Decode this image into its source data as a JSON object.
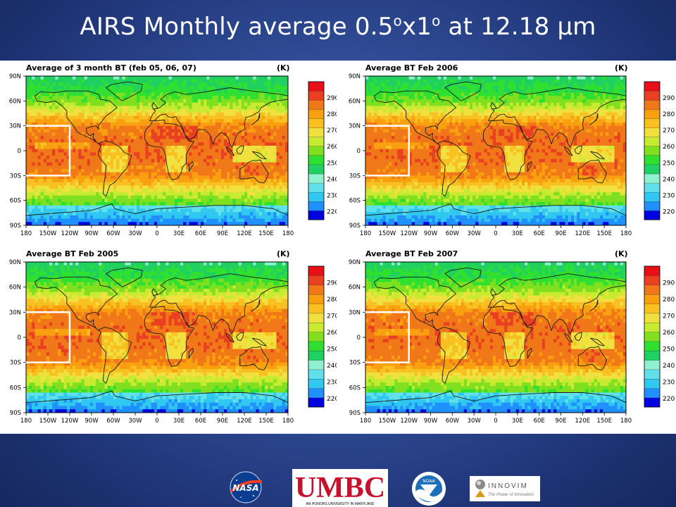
{
  "slide": {
    "title_main": "AIRS Monthly average 0.5",
    "title_deg1": "o",
    "title_mid": "x1",
    "title_deg2": "o",
    "title_end": " at 12.18 µm"
  },
  "colors": {
    "background": "#2f4b95",
    "title": "#ffffff",
    "colorbar": [
      "#0000e0",
      "#2090ff",
      "#30c8f0",
      "#60e0e8",
      "#90f0d0",
      "#20d060",
      "#30e030",
      "#80e020",
      "#c8ea30",
      "#f0e040",
      "#f8c020",
      "#f8a010",
      "#f07818",
      "#e84020",
      "#e81018"
    ],
    "region_box": "#ffffff"
  },
  "logos": {
    "nasa": "NASA",
    "umbc": "UMBC",
    "umbc_tagline": "AN HONORS UNIVERSITY IN MARYLAND",
    "noaa": "NOAA",
    "innovim": "INNOVIM",
    "innovim_tagline": "The Power of Innovation"
  },
  "chart_data": [
    {
      "type": "heatmap",
      "title": "Average of 3 month BT (feb 05, 06, 07)",
      "units": "(K)",
      "x_ticks": [
        "180",
        "150W",
        "120W",
        "90W",
        "60W",
        "30W",
        "0",
        "30E",
        "60E",
        "90E",
        "120E",
        "150E",
        "180"
      ],
      "y_ticks": [
        "90N",
        "60N",
        "30N",
        "0",
        "30S",
        "60S",
        "90S"
      ],
      "colorbar_ticks": [
        "290",
        "280",
        "270",
        "260",
        "250",
        "240",
        "230",
        "220"
      ],
      "colorbar_range": [
        215,
        300
      ],
      "highlight_region": {
        "lon": [
          -180,
          -120
        ],
        "lat": [
          -30,
          30
        ]
      }
    },
    {
      "type": "heatmap",
      "title": "Average BT Feb 2006",
      "units": "(K)",
      "x_ticks": [
        "180",
        "150W",
        "120W",
        "90W",
        "60W",
        "30W",
        "0",
        "30E",
        "60E",
        "90E",
        "120E",
        "150E",
        "180"
      ],
      "y_ticks": [
        "90N",
        "60N",
        "30N",
        "0",
        "30S",
        "60S",
        "90S"
      ],
      "colorbar_ticks": [
        "290",
        "280",
        "270",
        "260",
        "250",
        "240",
        "230",
        "220"
      ],
      "colorbar_range": [
        215,
        300
      ],
      "highlight_region": {
        "lon": [
          -180,
          -120
        ],
        "lat": [
          -30,
          30
        ]
      }
    },
    {
      "type": "heatmap",
      "title": "Average BT Feb 2005",
      "units": "(K)",
      "x_ticks": [
        "180",
        "150W",
        "120W",
        "90W",
        "60W",
        "30W",
        "0",
        "30E",
        "60E",
        "90E",
        "120E",
        "150E",
        "180"
      ],
      "y_ticks": [
        "90N",
        "60N",
        "30N",
        "0",
        "30S",
        "60S",
        "90S"
      ],
      "colorbar_ticks": [
        "290",
        "280",
        "270",
        "260",
        "250",
        "240",
        "230",
        "220"
      ],
      "colorbar_range": [
        215,
        300
      ],
      "highlight_region": {
        "lon": [
          -180,
          -120
        ],
        "lat": [
          -30,
          30
        ]
      }
    },
    {
      "type": "heatmap",
      "title": "Average BT Feb 2007",
      "units": "(K)",
      "x_ticks": [
        "180",
        "150W",
        "120W",
        "90W",
        "60W",
        "30W",
        "0",
        "30E",
        "60E",
        "90E",
        "120E",
        "150E",
        "180"
      ],
      "y_ticks": [
        "90N",
        "60N",
        "30N",
        "0",
        "30S",
        "60S",
        "90S"
      ],
      "colorbar_ticks": [
        "290",
        "280",
        "270",
        "260",
        "250",
        "240",
        "230",
        "220"
      ],
      "colorbar_range": [
        215,
        300
      ],
      "highlight_region": {
        "lon": [
          -180,
          -120
        ],
        "lat": [
          -30,
          30
        ]
      }
    }
  ]
}
